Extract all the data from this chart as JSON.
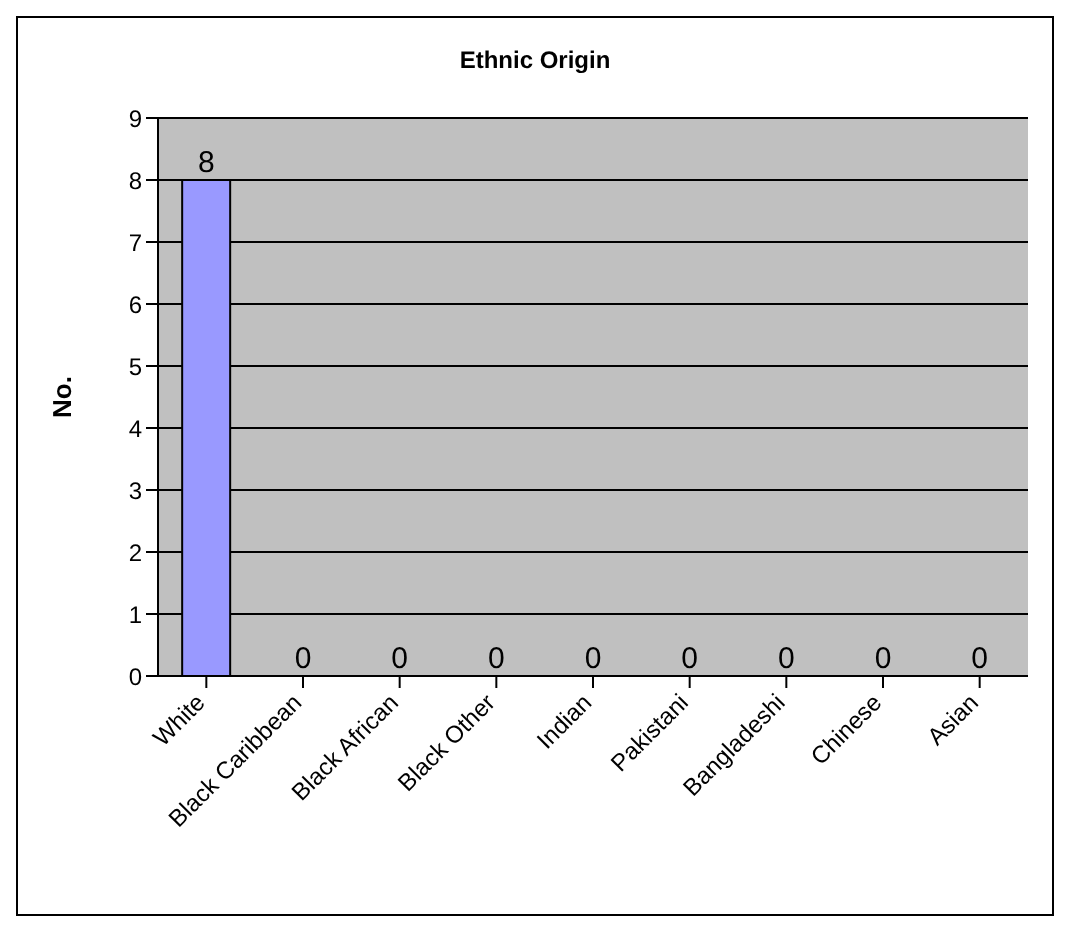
{
  "chart_data": {
    "type": "bar",
    "title": "Ethnic Origin",
    "ylabel": "No.",
    "categories": [
      "White",
      "Black Caribbean",
      "Black African",
      "Black Other",
      "Indian",
      "Pakistani",
      "Bangladeshi",
      "Chinese",
      "Asian"
    ],
    "values": [
      8,
      0,
      0,
      0,
      0,
      0,
      0,
      0,
      0
    ],
    "color": "#9999ff",
    "ylim": [
      0,
      9
    ],
    "yticks": [
      0,
      1,
      2,
      3,
      4,
      5,
      6,
      7,
      8,
      9
    ],
    "grid": "y",
    "data_labels": true
  }
}
